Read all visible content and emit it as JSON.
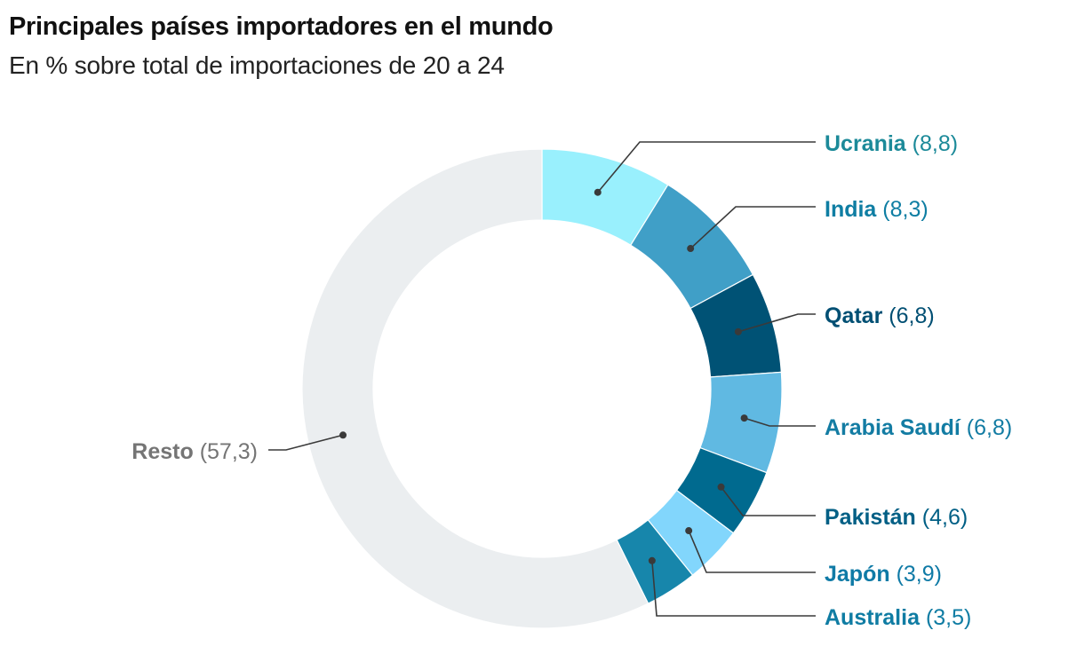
{
  "header": {
    "title": "Principales países importadores en el mundo",
    "subtitle": "En % sobre total de importaciones de 20 a 24"
  },
  "chart_data": {
    "type": "pie",
    "variant": "donut",
    "title": "Principales países importadores en el mundo",
    "subtitle": "En % sobre total de importaciones de 20 a 24",
    "unit": "%",
    "start": "top",
    "direction": "clockwise",
    "slices": [
      {
        "label": "Ucrania",
        "value": 8.8,
        "value_text": "(8,8)",
        "color": "#99f0fd",
        "label_color": "#1c8a99"
      },
      {
        "label": "India",
        "value": 8.3,
        "value_text": "(8,3)",
        "color": "#409fc7",
        "label_color": "#0f7ea3"
      },
      {
        "label": "Qatar",
        "value": 6.8,
        "value_text": "(6,8)",
        "color": "#005275",
        "label_color": "#004f73"
      },
      {
        "label": "Arabia Saudí",
        "value": 6.8,
        "value_text": "(6,8)",
        "color": "#60b9e2",
        "label_color": "#137ca3"
      },
      {
        "label": "Pakistán",
        "value": 4.6,
        "value_text": "(4,6)",
        "color": "#006a8f",
        "label_color": "#005f85"
      },
      {
        "label": "Japón",
        "value": 3.9,
        "value_text": "(3,9)",
        "color": "#82d6fc",
        "label_color": "#0f7aa6"
      },
      {
        "label": "Australia",
        "value": 3.5,
        "value_text": "(3,5)",
        "color": "#1786ab",
        "label_color": "#0f7ca3"
      },
      {
        "label": "Resto",
        "value": 57.3,
        "value_text": "(57,3)",
        "color": "#ebeef0",
        "label_color": "#757575"
      }
    ],
    "leader_color": "#3a3a3a"
  }
}
